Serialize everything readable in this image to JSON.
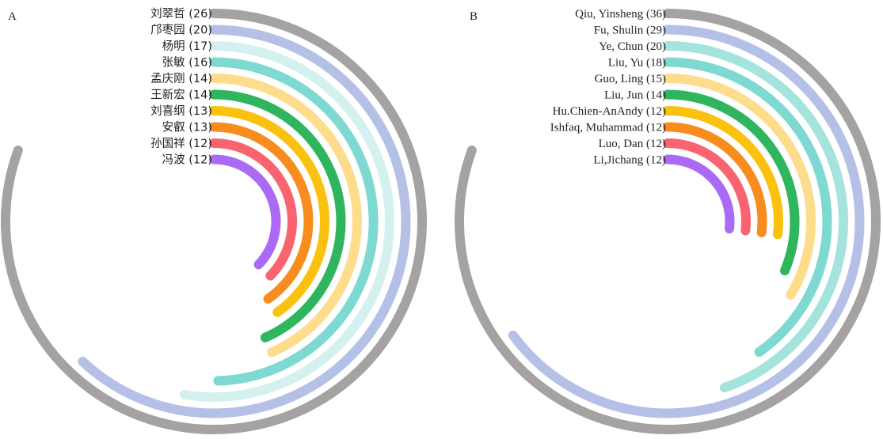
{
  "chart_data": [
    {
      "type": "radial-bar",
      "panel_label": "A",
      "value_max": 26,
      "categories": [
        "刘翠哲",
        "邝枣园",
        "杨明",
        "张敏",
        "孟庆刚",
        "王新宏",
        "刘喜纲",
        "安叡",
        "孙国祥",
        "冯波"
      ],
      "values": [
        26,
        20,
        17,
        16,
        14,
        14,
        13,
        13,
        12,
        12
      ],
      "labels": [
        "刘翠哲 (26)",
        "邝枣园 (20)",
        "杨明 (17)",
        "张敏 (16)",
        "孟庆刚 (14)",
        "王新宏 (14)",
        "刘喜纲 (13)",
        "安叡 (13)",
        "孙国祥 (12)",
        "冯波 (12)"
      ],
      "colors": [
        "#a5a2a3",
        "#b5c0e6",
        "#d5f1ef",
        "#7dd9d1",
        "#fddc8c",
        "#2eb55e",
        "#fbc10f",
        "#f88c1e",
        "#f96470",
        "#ab6af5"
      ]
    },
    {
      "type": "radial-bar",
      "panel_label": "B",
      "value_max": 36,
      "categories": [
        "Qiu, Yinsheng",
        "Fu, Shulin",
        "Ye, Chun",
        "Liu, Yu",
        "Guo, Ling",
        "Liu, Jun",
        "Hu.Chien-AnAndy",
        "Ishfaq, Muhammad",
        "Luo, Dan",
        "Li,Jichang"
      ],
      "values": [
        36,
        29,
        20,
        18,
        15,
        14,
        12,
        12,
        12,
        12
      ],
      "labels": [
        "Qiu, Yinsheng (36)",
        "Fu, Shulin (29)",
        "Ye, Chun (20)",
        "Liu, Yu (18)",
        "Guo, Ling (15)",
        "Liu, Jun (14)",
        "Hu.Chien-AnAndy (12)",
        "Ishfaq, Muhammad (12)",
        "Luo, Dan (12)",
        "Li,Jichang (12)"
      ],
      "colors": [
        "#a5a2a3",
        "#b5c0e6",
        "#a4e4dd",
        "#7dd9d1",
        "#fddc8c",
        "#2eb55e",
        "#fbc10f",
        "#f88c1e",
        "#f96470",
        "#ab6af5"
      ]
    }
  ]
}
